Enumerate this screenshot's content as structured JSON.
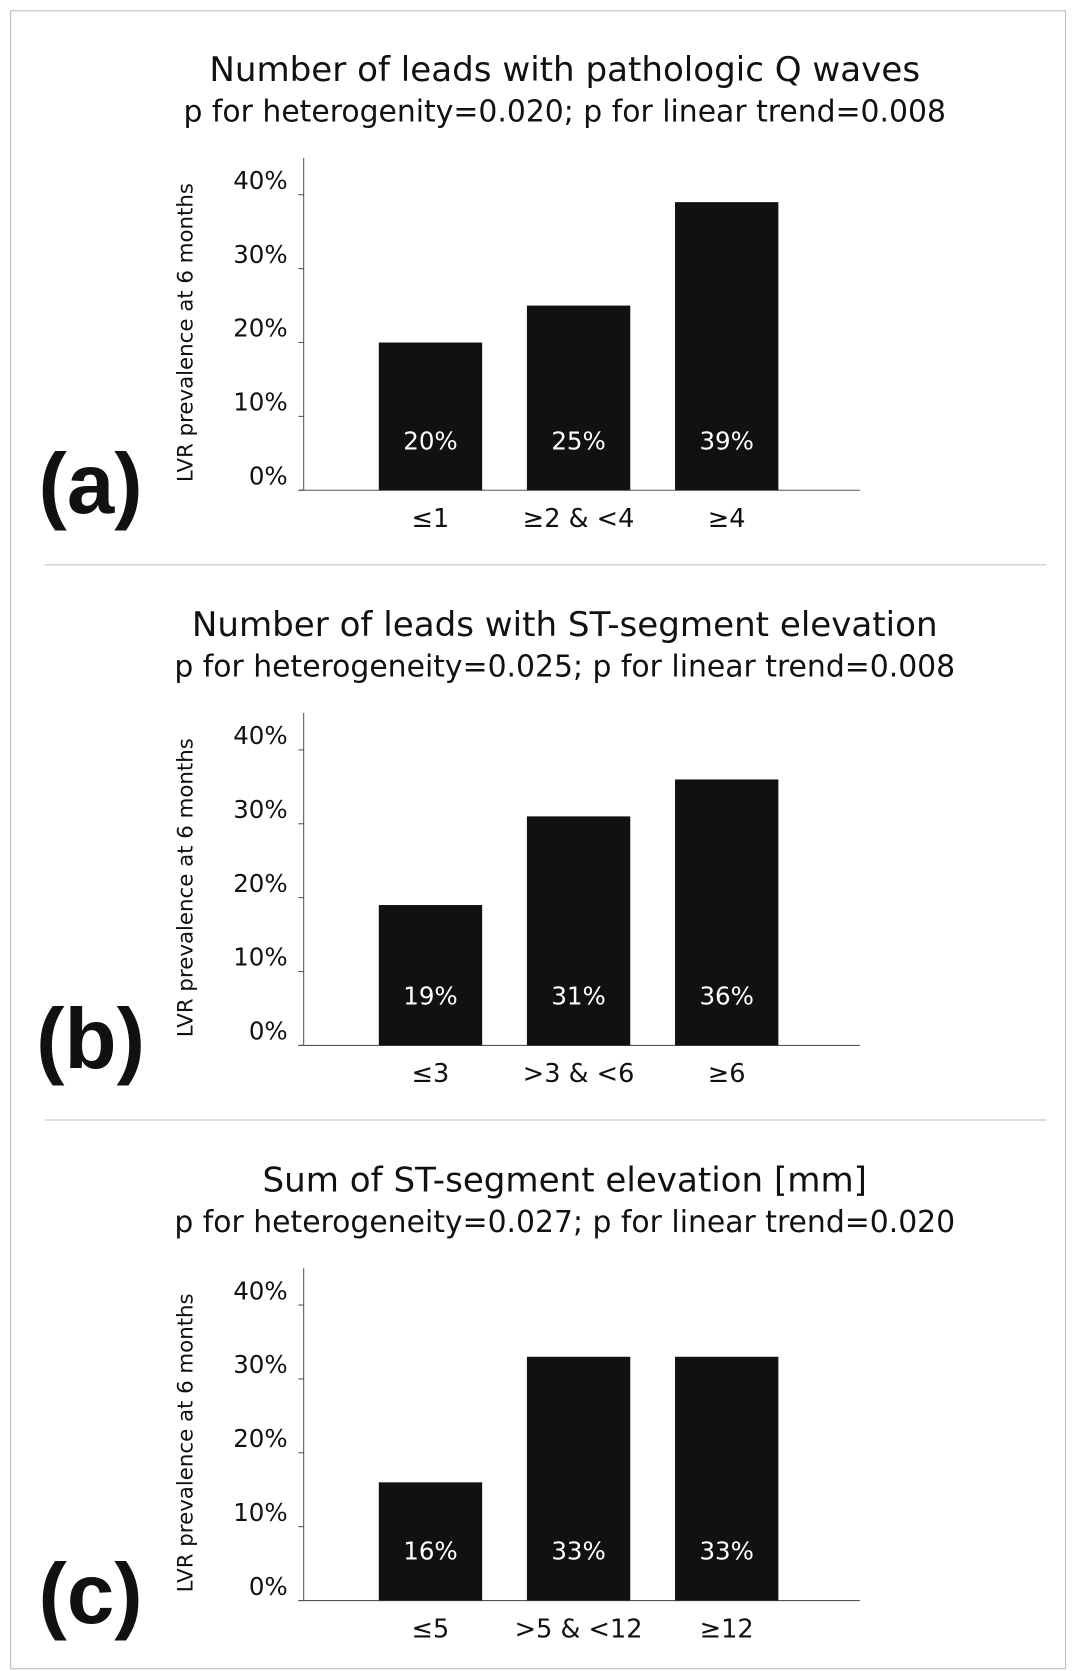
{
  "chart_data": [
    {
      "type": "bar",
      "panel_label": "(a)",
      "title": "Number of leads with pathologic Q waves",
      "subtitle": "p for heterogenity=0.020; p for linear trend=0.008",
      "y_label": "LVR prevalence at 6 months",
      "categories": [
        "≤1",
        "≥2 & <4",
        "≥4"
      ],
      "values": [
        20,
        25,
        39
      ],
      "value_labels": [
        "20%",
        "25%",
        "39%"
      ],
      "color": "#111111",
      "ylim": [
        0,
        45
      ],
      "yticks": [
        {
          "value": 0,
          "label": "0%"
        },
        {
          "value": 10,
          "label": "10%"
        },
        {
          "value": 20,
          "label": "20%"
        },
        {
          "value": 30,
          "label": "30%"
        },
        {
          "value": 40,
          "label": "40%"
        }
      ]
    },
    {
      "type": "bar",
      "panel_label": "(b)",
      "title": "Number of leads with ST-segment elevation",
      "subtitle": "p for heterogeneity=0.025; p for linear trend=0.008",
      "y_label": "LVR prevalence at 6 months",
      "categories": [
        "≤3",
        ">3 & <6",
        "≥6"
      ],
      "values": [
        19,
        31,
        36
      ],
      "value_labels": [
        "19%",
        "31%",
        "36%"
      ],
      "color": "#111111",
      "ylim": [
        0,
        45
      ],
      "yticks": [
        {
          "value": 0,
          "label": "0%"
        },
        {
          "value": 10,
          "label": "10%"
        },
        {
          "value": 20,
          "label": "20%"
        },
        {
          "value": 30,
          "label": "30%"
        },
        {
          "value": 40,
          "label": "40%"
        }
      ]
    },
    {
      "type": "bar",
      "panel_label": "(c)",
      "title": "Sum of ST-segment elevation [mm]",
      "subtitle": "p for heterogeneity=0.027; p for linear trend=0.020",
      "y_label": "LVR prevalence at 6 months",
      "categories": [
        "≤5",
        ">5 & <12",
        "≥12"
      ],
      "values": [
        16,
        33,
        33
      ],
      "value_labels": [
        "16%",
        "33%",
        "33%"
      ],
      "color": "#111111",
      "ylim": [
        0,
        45
      ],
      "yticks": [
        {
          "value": 0,
          "label": "0%"
        },
        {
          "value": 10,
          "label": "10%"
        },
        {
          "value": 20,
          "label": "20%"
        },
        {
          "value": 30,
          "label": "30%"
        },
        {
          "value": 40,
          "label": "40%"
        }
      ]
    }
  ]
}
